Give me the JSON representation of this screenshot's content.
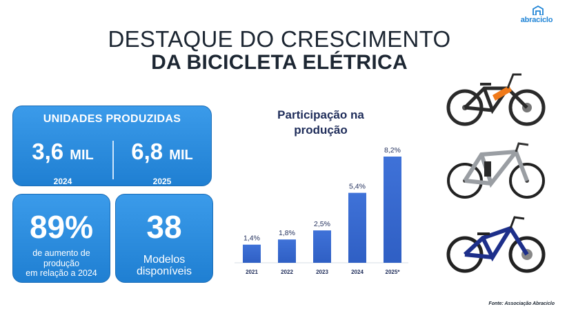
{
  "brand": {
    "logo_text": "abraciclo",
    "color": "#1f84d6"
  },
  "title": {
    "line1": "DESTAQUE DO CRESCIMENTO",
    "line2": "DA BICICLETA ELÉTRICA"
  },
  "units_card": {
    "heading": "UNIDADES PRODUZIDAS",
    "left": {
      "value": "3,6",
      "unit": "MIL",
      "year": "2024"
    },
    "right": {
      "value": "6,8",
      "unit": "MIL",
      "year": "2025"
    }
  },
  "growth_card": {
    "value": "89%",
    "caption_lines": [
      "de aumento de",
      "produção",
      "em relação a 2024"
    ]
  },
  "models_card": {
    "value": "38",
    "caption_lines": [
      "Modelos",
      "disponíveis"
    ]
  },
  "chart_data": {
    "type": "bar",
    "title": "Participação na produção",
    "title_lines": [
      "Participação na",
      "produção"
    ],
    "categories": [
      "2021",
      "2022",
      "2023",
      "2024",
      "2025*"
    ],
    "values": [
      1.4,
      1.8,
      2.5,
      5.4,
      8.2
    ],
    "value_labels": [
      "1,4%",
      "1,8%",
      "2,5%",
      "5,4%",
      "8,2%"
    ],
    "ylim": [
      0,
      8.2
    ],
    "xlabel": "",
    "ylabel": "",
    "grid": false,
    "bar_color": "#2f5fc4"
  },
  "images": [
    {
      "name": "electric-mountain-bike-orange",
      "colors": [
        "#2a2a2a",
        "#f07a1a"
      ]
    },
    {
      "name": "electric-bike-silver",
      "colors": [
        "#9a9ea3",
        "#222222"
      ]
    },
    {
      "name": "electric-mountain-bike-blue",
      "colors": [
        "#1d2f8a",
        "#222222"
      ]
    }
  ],
  "source": "Fonte: Associação Abraciclo"
}
